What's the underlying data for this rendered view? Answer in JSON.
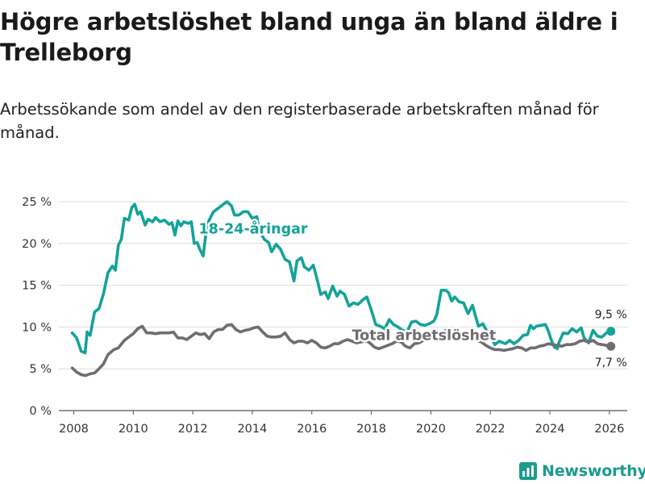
{
  "title": "Högre arbetslöshet bland unga än bland äldre i Trelleborg",
  "subtitle": "Arbetssökande som andel av den registerbaserade arbetskraften månad för månad.",
  "brand": {
    "name": "Newsworthy",
    "icon": "newsworthy-logo-icon",
    "color": "#1a9b8d"
  },
  "chart_data": {
    "type": "line",
    "title": "Högre arbetslöshet bland unga än bland äldre i Trelleborg",
    "subtitle": "Arbetssökande som andel av den registerbaserade arbetskraften månad för månad.",
    "xlabel": "",
    "ylabel": "",
    "xlim": [
      2007.5,
      2026.6
    ],
    "ylim": [
      0,
      25
    ],
    "x_ticks": [
      2008,
      2010,
      2012,
      2014,
      2016,
      2018,
      2020,
      2022,
      2024,
      2026
    ],
    "y_ticks": [
      {
        "value": 0,
        "label": "0 %"
      },
      {
        "value": 5,
        "label": "5 %"
      },
      {
        "value": 10,
        "label": "10 %"
      },
      {
        "value": 15,
        "label": "15 %"
      },
      {
        "value": 20,
        "label": "20 %"
      },
      {
        "value": 25,
        "label": "25 %"
      }
    ],
    "grid": true,
    "series": [
      {
        "name": "18-24-åringar",
        "label": "18-24-åringar",
        "color": "#14a398",
        "last_value_label": "9,5 %",
        "points": [
          [
            2007.95,
            9.3
          ],
          [
            2008.1,
            8.7
          ],
          [
            2008.25,
            7.1
          ],
          [
            2008.38,
            6.9
          ],
          [
            2008.45,
            9.4
          ],
          [
            2008.55,
            9.0
          ],
          [
            2008.7,
            11.8
          ],
          [
            2008.85,
            12.2
          ],
          [
            2009.0,
            14.0
          ],
          [
            2009.15,
            16.5
          ],
          [
            2009.3,
            17.3
          ],
          [
            2009.4,
            16.8
          ],
          [
            2009.5,
            19.8
          ],
          [
            2009.6,
            20.5
          ],
          [
            2009.7,
            23.0
          ],
          [
            2009.85,
            22.8
          ],
          [
            2009.95,
            24.3
          ],
          [
            2010.05,
            24.7
          ],
          [
            2010.15,
            23.5
          ],
          [
            2010.25,
            23.8
          ],
          [
            2010.4,
            22.2
          ],
          [
            2010.5,
            22.9
          ],
          [
            2010.65,
            22.6
          ],
          [
            2010.75,
            23.1
          ],
          [
            2010.9,
            22.6
          ],
          [
            2011.05,
            22.8
          ],
          [
            2011.2,
            22.3
          ],
          [
            2011.3,
            22.5
          ],
          [
            2011.4,
            21.0
          ],
          [
            2011.5,
            22.7
          ],
          [
            2011.6,
            22.1
          ],
          [
            2011.7,
            22.6
          ],
          [
            2011.85,
            22.4
          ],
          [
            2011.95,
            22.6
          ],
          [
            2012.05,
            20.0
          ],
          [
            2012.15,
            20.1
          ],
          [
            2012.25,
            19.2
          ],
          [
            2012.35,
            18.5
          ],
          [
            2012.45,
            21.5
          ],
          [
            2012.55,
            22.8
          ],
          [
            2012.7,
            23.8
          ],
          [
            2012.85,
            24.2
          ],
          [
            2013.0,
            24.6
          ],
          [
            2013.15,
            25.0
          ],
          [
            2013.3,
            24.5
          ],
          [
            2013.4,
            23.4
          ],
          [
            2013.55,
            23.4
          ],
          [
            2013.7,
            23.8
          ],
          [
            2013.85,
            23.8
          ],
          [
            2014.0,
            23.0
          ],
          [
            2014.15,
            23.2
          ],
          [
            2014.25,
            21.5
          ],
          [
            2014.4,
            20.5
          ],
          [
            2014.55,
            20.1
          ],
          [
            2014.65,
            19.0
          ],
          [
            2014.8,
            19.9
          ],
          [
            2014.95,
            19.3
          ],
          [
            2015.1,
            18.1
          ],
          [
            2015.25,
            17.8
          ],
          [
            2015.4,
            15.5
          ],
          [
            2015.5,
            17.9
          ],
          [
            2015.65,
            18.3
          ],
          [
            2015.75,
            17.2
          ],
          [
            2015.9,
            16.8
          ],
          [
            2016.05,
            17.4
          ],
          [
            2016.2,
            15.4
          ],
          [
            2016.3,
            13.9
          ],
          [
            2016.45,
            14.2
          ],
          [
            2016.55,
            13.4
          ],
          [
            2016.7,
            14.9
          ],
          [
            2016.85,
            13.7
          ],
          [
            2016.95,
            14.3
          ],
          [
            2017.1,
            13.9
          ],
          [
            2017.25,
            12.5
          ],
          [
            2017.4,
            12.9
          ],
          [
            2017.55,
            12.7
          ],
          [
            2017.7,
            13.2
          ],
          [
            2017.85,
            13.6
          ],
          [
            2018.0,
            12.0
          ],
          [
            2018.15,
            10.3
          ],
          [
            2018.3,
            10.1
          ],
          [
            2018.45,
            9.8
          ],
          [
            2018.6,
            10.9
          ],
          [
            2018.75,
            10.3
          ],
          [
            2018.9,
            10.0
          ],
          [
            2019.05,
            9.6
          ],
          [
            2019.2,
            9.4
          ],
          [
            2019.35,
            10.6
          ],
          [
            2019.5,
            10.7
          ],
          [
            2019.65,
            10.3
          ],
          [
            2019.8,
            10.2
          ],
          [
            2019.95,
            10.4
          ],
          [
            2020.1,
            10.7
          ],
          [
            2020.2,
            11.5
          ],
          [
            2020.35,
            14.4
          ],
          [
            2020.5,
            14.4
          ],
          [
            2020.6,
            14.1
          ],
          [
            2020.7,
            13.1
          ],
          [
            2020.8,
            13.6
          ],
          [
            2020.95,
            13.0
          ],
          [
            2021.1,
            12.9
          ],
          [
            2021.25,
            11.6
          ],
          [
            2021.4,
            12.6
          ],
          [
            2021.5,
            11.3
          ],
          [
            2021.6,
            10.1
          ],
          [
            2021.75,
            10.4
          ],
          [
            2021.85,
            9.7
          ],
          [
            2022.0,
            8.9
          ],
          [
            2022.15,
            7.9
          ],
          [
            2022.3,
            8.3
          ],
          [
            2022.5,
            8.0
          ],
          [
            2022.65,
            8.4
          ],
          [
            2022.8,
            8.0
          ],
          [
            2022.95,
            8.4
          ],
          [
            2023.1,
            9.0
          ],
          [
            2023.25,
            9.1
          ],
          [
            2023.35,
            10.2
          ],
          [
            2023.45,
            9.8
          ],
          [
            2023.55,
            10.1
          ],
          [
            2023.7,
            10.2
          ],
          [
            2023.85,
            10.3
          ],
          [
            2023.95,
            9.5
          ],
          [
            2024.05,
            8.4
          ],
          [
            2024.15,
            7.6
          ],
          [
            2024.25,
            7.4
          ],
          [
            2024.3,
            8.1
          ],
          [
            2024.45,
            9.3
          ],
          [
            2024.6,
            9.2
          ],
          [
            2024.75,
            9.8
          ],
          [
            2024.9,
            9.4
          ],
          [
            2025.05,
            9.9
          ],
          [
            2025.15,
            8.7
          ],
          [
            2025.3,
            8.1
          ],
          [
            2025.45,
            9.6
          ],
          [
            2025.6,
            8.9
          ],
          [
            2025.75,
            8.8
          ],
          [
            2025.9,
            9.3
          ],
          [
            2026.05,
            9.5
          ]
        ]
      },
      {
        "name": "Total arbetslöshet",
        "label": "Total arbetslöshet",
        "color": "#6d6d72",
        "last_value_label": "7,7 %",
        "points": [
          [
            2007.95,
            5.1
          ],
          [
            2008.1,
            4.6
          ],
          [
            2008.25,
            4.3
          ],
          [
            2008.4,
            4.2
          ],
          [
            2008.55,
            4.4
          ],
          [
            2008.7,
            4.5
          ],
          [
            2008.85,
            5.0
          ],
          [
            2009.0,
            5.6
          ],
          [
            2009.15,
            6.7
          ],
          [
            2009.35,
            7.3
          ],
          [
            2009.5,
            7.5
          ],
          [
            2009.7,
            8.4
          ],
          [
            2009.85,
            8.8
          ],
          [
            2010.0,
            9.2
          ],
          [
            2010.15,
            9.8
          ],
          [
            2010.3,
            10.1
          ],
          [
            2010.45,
            9.3
          ],
          [
            2010.6,
            9.3
          ],
          [
            2010.75,
            9.2
          ],
          [
            2010.9,
            9.3
          ],
          [
            2011.05,
            9.3
          ],
          [
            2011.2,
            9.3
          ],
          [
            2011.35,
            9.4
          ],
          [
            2011.5,
            8.7
          ],
          [
            2011.65,
            8.7
          ],
          [
            2011.8,
            8.5
          ],
          [
            2011.95,
            8.9
          ],
          [
            2012.1,
            9.3
          ],
          [
            2012.25,
            9.1
          ],
          [
            2012.4,
            9.2
          ],
          [
            2012.55,
            8.6
          ],
          [
            2012.7,
            9.4
          ],
          [
            2012.85,
            9.7
          ],
          [
            2013.0,
            9.7
          ],
          [
            2013.15,
            10.2
          ],
          [
            2013.3,
            10.3
          ],
          [
            2013.45,
            9.7
          ],
          [
            2013.6,
            9.4
          ],
          [
            2013.75,
            9.6
          ],
          [
            2013.9,
            9.7
          ],
          [
            2014.05,
            9.9
          ],
          [
            2014.2,
            10.0
          ],
          [
            2014.35,
            9.4
          ],
          [
            2014.5,
            8.9
          ],
          [
            2014.65,
            8.8
          ],
          [
            2014.8,
            8.8
          ],
          [
            2014.95,
            8.9
          ],
          [
            2015.1,
            9.3
          ],
          [
            2015.25,
            8.5
          ],
          [
            2015.4,
            8.1
          ],
          [
            2015.55,
            8.3
          ],
          [
            2015.7,
            8.3
          ],
          [
            2015.85,
            8.1
          ],
          [
            2016.0,
            8.4
          ],
          [
            2016.15,
            8.1
          ],
          [
            2016.3,
            7.6
          ],
          [
            2016.45,
            7.5
          ],
          [
            2016.6,
            7.7
          ],
          [
            2016.75,
            8.0
          ],
          [
            2016.9,
            8.0
          ],
          [
            2017.05,
            8.3
          ],
          [
            2017.2,
            8.5
          ],
          [
            2017.35,
            8.3
          ],
          [
            2017.5,
            8.1
          ],
          [
            2017.65,
            8.2
          ],
          [
            2017.8,
            8.4
          ],
          [
            2017.95,
            8.1
          ],
          [
            2018.1,
            7.6
          ],
          [
            2018.25,
            7.4
          ],
          [
            2018.4,
            7.6
          ],
          [
            2018.55,
            7.8
          ],
          [
            2018.7,
            8.0
          ],
          [
            2018.85,
            8.3
          ],
          [
            2019.0,
            8.2
          ],
          [
            2019.15,
            7.7
          ],
          [
            2019.3,
            7.5
          ],
          [
            2019.45,
            8.0
          ],
          [
            2019.6,
            8.1
          ],
          [
            2019.75,
            8.4
          ],
          [
            2019.9,
            8.9
          ],
          [
            2020.05,
            9.3
          ],
          [
            2020.2,
            9.5
          ],
          [
            2020.35,
            9.3
          ],
          [
            2020.5,
            9.6
          ],
          [
            2020.65,
            9.5
          ],
          [
            2020.8,
            9.4
          ],
          [
            2020.95,
            9.2
          ],
          [
            2021.1,
            9.1
          ],
          [
            2021.25,
            9.0
          ],
          [
            2021.4,
            8.7
          ],
          [
            2021.55,
            8.4
          ],
          [
            2021.7,
            8.2
          ],
          [
            2021.85,
            7.8
          ],
          [
            2022.0,
            7.5
          ],
          [
            2022.15,
            7.3
          ],
          [
            2022.3,
            7.3
          ],
          [
            2022.45,
            7.2
          ],
          [
            2022.6,
            7.3
          ],
          [
            2022.75,
            7.4
          ],
          [
            2022.9,
            7.6
          ],
          [
            2023.05,
            7.5
          ],
          [
            2023.2,
            7.2
          ],
          [
            2023.35,
            7.5
          ],
          [
            2023.5,
            7.5
          ],
          [
            2023.65,
            7.7
          ],
          [
            2023.8,
            7.8
          ],
          [
            2023.95,
            8.0
          ],
          [
            2024.1,
            7.9
          ],
          [
            2024.25,
            7.8
          ],
          [
            2024.4,
            7.7
          ],
          [
            2024.55,
            7.9
          ],
          [
            2024.7,
            7.9
          ],
          [
            2024.85,
            8.0
          ],
          [
            2025.0,
            8.3
          ],
          [
            2025.15,
            8.4
          ],
          [
            2025.3,
            8.2
          ],
          [
            2025.45,
            8.4
          ],
          [
            2025.6,
            8.0
          ],
          [
            2025.75,
            7.9
          ],
          [
            2025.9,
            7.8
          ],
          [
            2026.05,
            7.7
          ]
        ]
      }
    ]
  }
}
